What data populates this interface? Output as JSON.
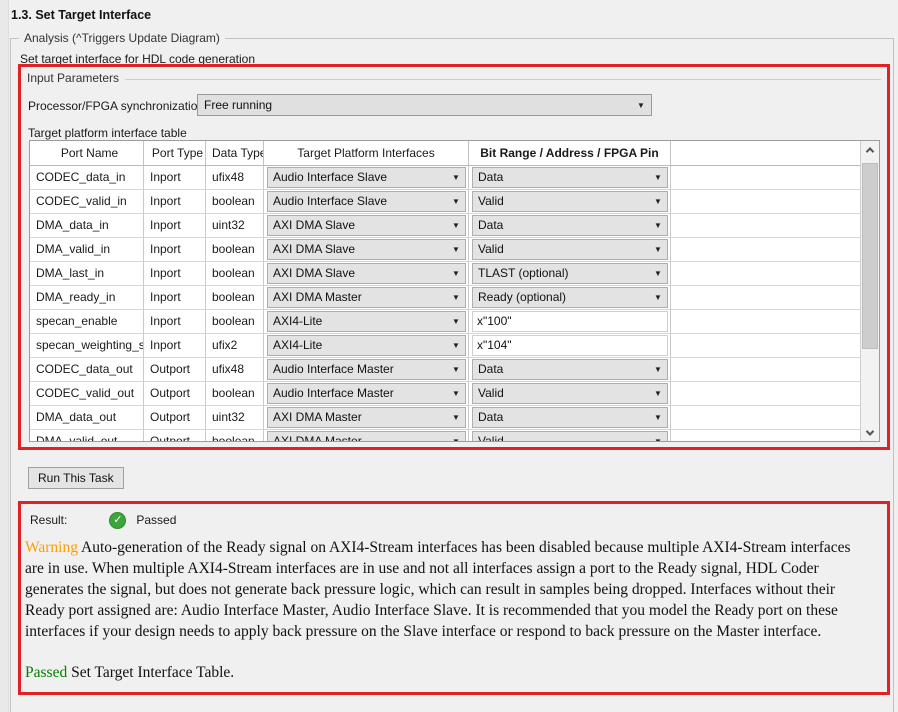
{
  "page": {
    "title": "1.3. Set Target Interface",
    "group_label": "Analysis (^Triggers Update Diagram)",
    "subtitle": "Set target interface for HDL code generation"
  },
  "input_parameters": {
    "legend": "Input Parameters",
    "sync_label": "Processor/FPGA synchronization:",
    "sync_value": "Free running",
    "table_caption": "Target platform interface table",
    "table": {
      "headers": [
        "Port Name",
        "Port Type",
        "Data Type",
        "Target Platform Interfaces",
        "Bit Range / Address / FPGA Pin"
      ],
      "rows": [
        {
          "port_name": "CODEC_data_in",
          "port_type": "Inport",
          "data_type": "ufix48",
          "interface": "Audio Interface Slave",
          "bit_range": "Data",
          "bit_range_kind": "dropdown"
        },
        {
          "port_name": "CODEC_valid_in",
          "port_type": "Inport",
          "data_type": "boolean",
          "interface": "Audio Interface Slave",
          "bit_range": "Valid",
          "bit_range_kind": "dropdown"
        },
        {
          "port_name": "DMA_data_in",
          "port_type": "Inport",
          "data_type": "uint32",
          "interface": "AXI DMA Slave",
          "bit_range": "Data",
          "bit_range_kind": "dropdown"
        },
        {
          "port_name": "DMA_valid_in",
          "port_type": "Inport",
          "data_type": "boolean",
          "interface": "AXI DMA Slave",
          "bit_range": "Valid",
          "bit_range_kind": "dropdown"
        },
        {
          "port_name": "DMA_last_in",
          "port_type": "Inport",
          "data_type": "boolean",
          "interface": "AXI DMA Slave",
          "bit_range": "TLAST (optional)",
          "bit_range_kind": "dropdown"
        },
        {
          "port_name": "DMA_ready_in",
          "port_type": "Inport",
          "data_type": "boolean",
          "interface": "AXI DMA Master",
          "bit_range": "Ready (optional)",
          "bit_range_kind": "dropdown"
        },
        {
          "port_name": "specan_enable",
          "port_type": "Inport",
          "data_type": "boolean",
          "interface": "AXI4-Lite",
          "bit_range": "x\"100\"",
          "bit_range_kind": "text"
        },
        {
          "port_name": "specan_weighting_sel",
          "port_type": "Inport",
          "data_type": "ufix2",
          "interface": "AXI4-Lite",
          "bit_range": "x\"104\"",
          "bit_range_kind": "text"
        },
        {
          "port_name": "CODEC_data_out",
          "port_type": "Outport",
          "data_type": "ufix48",
          "interface": "Audio Interface Master",
          "bit_range": "Data",
          "bit_range_kind": "dropdown"
        },
        {
          "port_name": "CODEC_valid_out",
          "port_type": "Outport",
          "data_type": "boolean",
          "interface": "Audio Interface Master",
          "bit_range": "Valid",
          "bit_range_kind": "dropdown"
        },
        {
          "port_name": "DMA_data_out",
          "port_type": "Outport",
          "data_type": "uint32",
          "interface": "AXI DMA Master",
          "bit_range": "Data",
          "bit_range_kind": "dropdown"
        },
        {
          "port_name": "DMA_valid_out",
          "port_type": "Outport",
          "data_type": "boolean",
          "interface": "AXI DMA Master",
          "bit_range": "Valid",
          "bit_range_kind": "dropdown"
        }
      ]
    }
  },
  "run_button_label": "Run This Task",
  "result": {
    "label": "Result:",
    "status": "Passed",
    "check_icon": "checkmark-in-green-circle",
    "warning_word": "Warning",
    "warning_text": " Auto-generation of the Ready signal on AXI4-Stream interfaces has been disabled because multiple AXI4-Stream interfaces are in use. When multiple AXI4-Stream interfaces are in use and not all interfaces assign a port to the Ready signal, HDL Coder generates the signal, but does not generate back pressure logic, which can result in samples being dropped. Interfaces without their Ready port assigned are: Audio Interface Master, Audio Interface Slave. It is recommended that you model the Ready port on these interfaces if your design needs to apply back pressure on the Slave interface or respond to back pressure on the Master interface.",
    "passed_word": "Passed",
    "passed_text": " Set Target Interface Table."
  },
  "colors": {
    "highlight_red": "#e02227",
    "warning_orange": "#ff9d00",
    "passed_green": "#008000",
    "check_green": "#3ea43c"
  }
}
